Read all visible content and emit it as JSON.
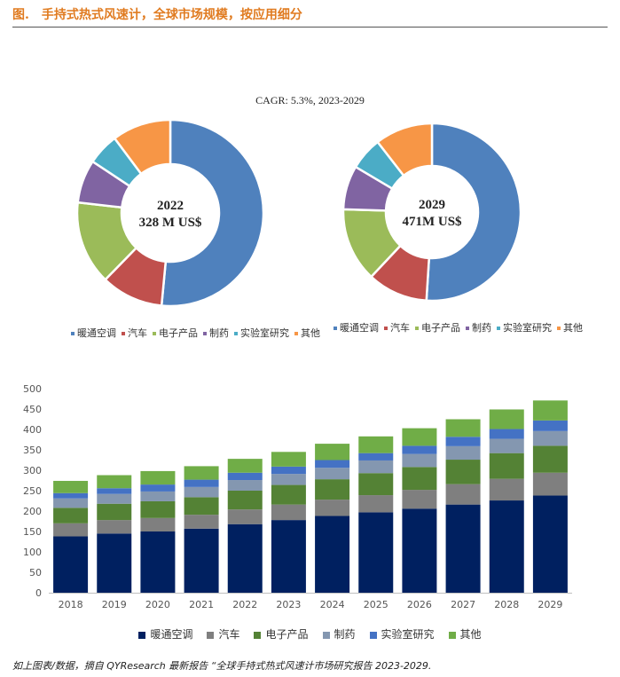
{
  "header": {
    "figure_label": "图.",
    "title": "手持式热式风速计，全球市场规模，按应用细分"
  },
  "cagr_text": "CAGR: 5.3%, 2023-2029",
  "footnote": "如上图表/数据，摘自 QYResearch 最新报告 “全球手持式热式风速计市场研究报告 2023-2029.",
  "colors": {
    "hvac": "#4f81bd",
    "auto": "#c0504d",
    "electronics": "#9bbb59",
    "pharma": "#8064a2",
    "lab": "#4bacc6",
    "other": "#f79646",
    "bar_hvac": "#002060",
    "bar_auto": "#7f7f7f",
    "bar_electronics": "#548235",
    "bar_pharma": "#8497b0",
    "bar_lab": "#4472c4",
    "bar_other": "#70ad47"
  },
  "chart_data": [
    {
      "type": "pie",
      "variant": "donut",
      "center_year": "2022",
      "center_value": "328 M US$",
      "labels": [
        "暖通空调",
        "汽车",
        "电子产品",
        "制药",
        "实验室研究",
        "其他"
      ],
      "values": [
        51.5,
        10.8,
        14.5,
        7.5,
        5.5,
        10.2
      ]
    },
    {
      "type": "pie",
      "variant": "donut",
      "center_year": "2029",
      "center_value": "471M US$",
      "labels": [
        "暖通空调",
        "汽车",
        "电子产品",
        "制药",
        "实验室研究",
        "其他"
      ],
      "values": [
        51.0,
        11.0,
        13.5,
        8.0,
        6.0,
        10.5
      ]
    },
    {
      "type": "bar",
      "stacked": true,
      "categories": [
        "2018",
        "2019",
        "2020",
        "2021",
        "2022",
        "2023",
        "2024",
        "2025",
        "2026",
        "2027",
        "2028",
        "2029"
      ],
      "ylim": [
        0,
        500
      ],
      "yticks": [
        "0",
        "50",
        "100",
        "150",
        "200",
        "250",
        "300",
        "350",
        "400",
        "450",
        "500"
      ],
      "series": [
        {
          "name": "暖通空调",
          "values": [
            138,
            145,
            150,
            157,
            168,
            178,
            188,
            197,
            206,
            216,
            226,
            238
          ]
        },
        {
          "name": "汽车",
          "values": [
            32,
            33,
            33,
            34,
            36,
            38,
            40,
            42,
            46,
            50,
            53,
            56
          ]
        },
        {
          "name": "电子产品",
          "values": [
            38,
            40,
            41,
            43,
            46,
            48,
            50,
            54,
            56,
            60,
            63,
            66
          ]
        },
        {
          "name": "制药",
          "values": [
            23,
            24,
            24,
            25,
            26,
            27,
            28,
            31,
            32,
            33,
            35,
            36
          ]
        },
        {
          "name": "实验室研究",
          "values": [
            13,
            14,
            17,
            18,
            18,
            18,
            19,
            18,
            20,
            23,
            24,
            26
          ]
        },
        {
          "name": "其他",
          "values": [
            30,
            32,
            33,
            33,
            34,
            36,
            40,
            41,
            43,
            43,
            48,
            49
          ]
        }
      ]
    }
  ]
}
